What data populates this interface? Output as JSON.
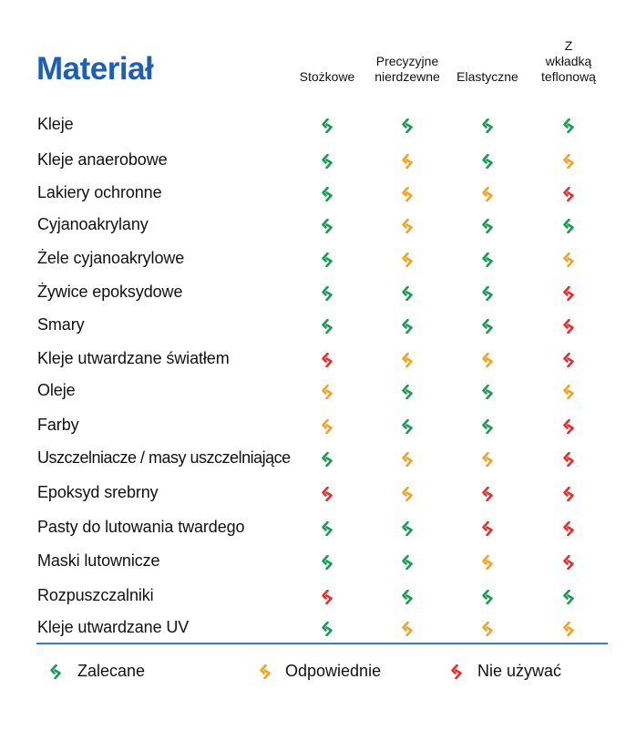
{
  "title": "Materiał",
  "columns": [
    {
      "lines": [
        "Stożkowe"
      ]
    },
    {
      "lines": [
        "Precyzyjne",
        "nierdzewne"
      ]
    },
    {
      "lines": [
        "Elastyczne"
      ]
    },
    {
      "lines": [
        "Z",
        "wkładką",
        "teflonową"
      ]
    }
  ],
  "status_colors": {
    "recommended": "#1a9a55",
    "suitable": "#f0a326",
    "not_used": "#e03131"
  },
  "rows": [
    {
      "label": "Kleje",
      "values": [
        "recommended",
        "recommended",
        "recommended",
        "recommended"
      ]
    },
    {
      "label": "Kleje anaerobowe",
      "values": [
        "recommended",
        "suitable",
        "recommended",
        "suitable"
      ]
    },
    {
      "label": "Lakiery ochronne",
      "values": [
        "recommended",
        "suitable",
        "suitable",
        "not_used"
      ]
    },
    {
      "label": "Cyjanoakrylany",
      "values": [
        "recommended",
        "suitable",
        "recommended",
        "recommended"
      ]
    },
    {
      "label": "Żele cyjanoakrylowe",
      "values": [
        "recommended",
        "suitable",
        "recommended",
        "suitable"
      ]
    },
    {
      "label": "Żywice epoksydowe",
      "values": [
        "recommended",
        "recommended",
        "recommended",
        "not_used"
      ]
    },
    {
      "label": "Smary",
      "values": [
        "recommended",
        "recommended",
        "recommended",
        "not_used"
      ]
    },
    {
      "label": "Kleje utwardzane światłem",
      "values": [
        "not_used",
        "suitable",
        "suitable",
        "not_used"
      ]
    },
    {
      "label": "Oleje",
      "values": [
        "suitable",
        "recommended",
        "recommended",
        "suitable"
      ]
    },
    {
      "label": "Farby",
      "values": [
        "suitable",
        "recommended",
        "recommended",
        "not_used"
      ]
    },
    {
      "label": "Uszczelniacze / masy uszczelniające",
      "values": [
        "recommended",
        "suitable",
        "suitable",
        "not_used"
      ]
    },
    {
      "label": "Epoksyd srebrny",
      "values": [
        "not_used",
        "suitable",
        "not_used",
        "not_used"
      ]
    },
    {
      "label": "Pasty do lutowania twardego",
      "values": [
        "recommended",
        "recommended",
        "not_used",
        "not_used"
      ]
    },
    {
      "label": "Maski lutownicze",
      "values": [
        "recommended",
        "recommended",
        "suitable",
        "not_used"
      ]
    },
    {
      "label": "Rozpuszczalniki",
      "values": [
        "not_used",
        "recommended",
        "recommended",
        "recommended"
      ]
    },
    {
      "label": "Kleje utwardzane UV",
      "values": [
        "recommended",
        "suitable",
        "suitable",
        "suitable"
      ]
    }
  ],
  "legend": [
    {
      "status": "recommended",
      "label": "Zalecane"
    },
    {
      "status": "suitable",
      "label": "Odpowiednie"
    },
    {
      "status": "not_used",
      "label": "Nie używać"
    }
  ]
}
